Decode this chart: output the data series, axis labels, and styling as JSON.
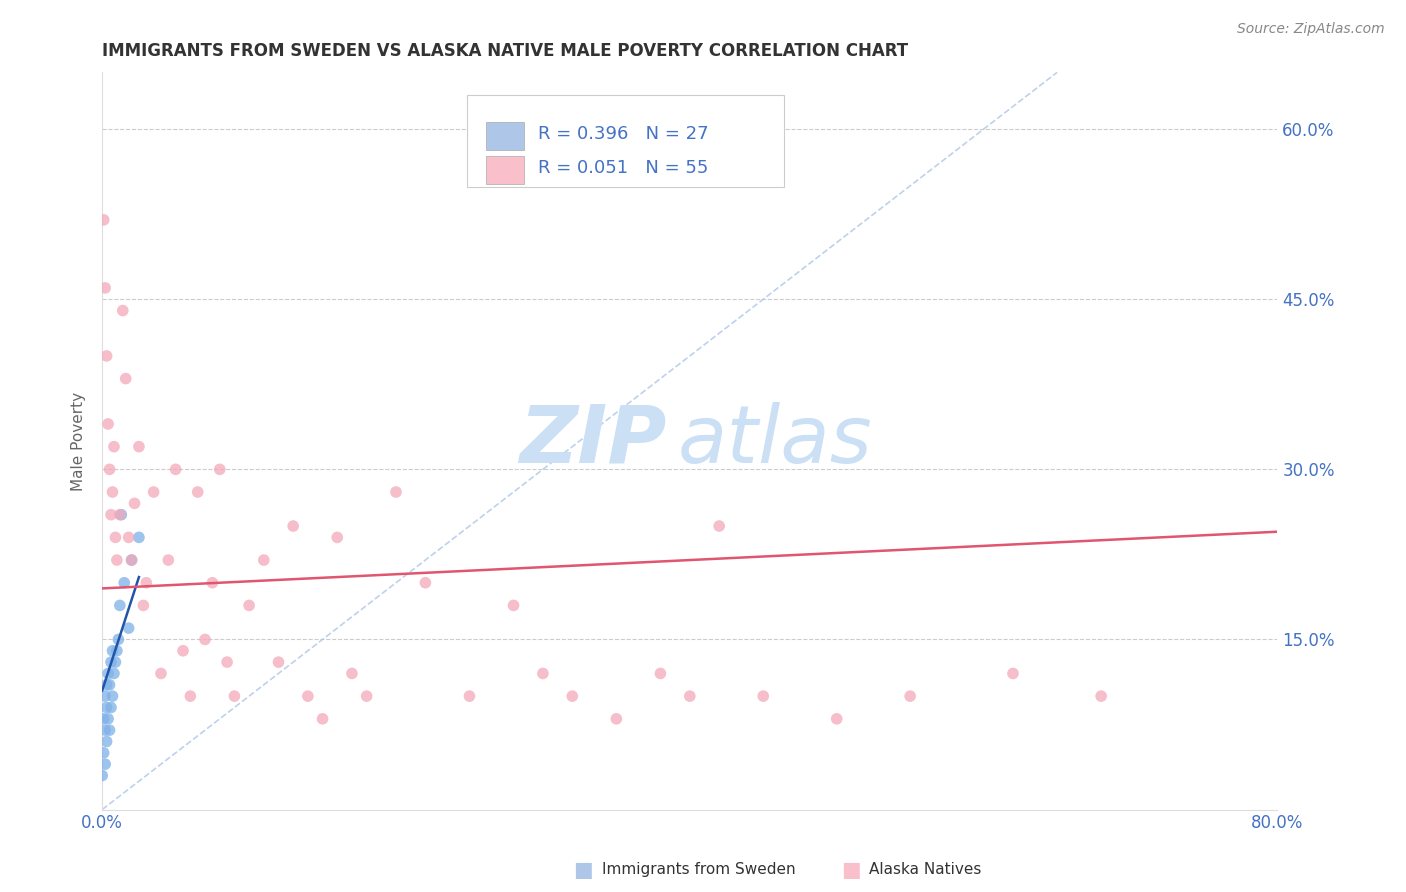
{
  "title": "IMMIGRANTS FROM SWEDEN VS ALASKA NATIVE MALE POVERTY CORRELATION CHART",
  "source_text": "Source: ZipAtlas.com",
  "ylabel": "Male Poverty",
  "xlim": [
    0.0,
    0.8
  ],
  "ylim": [
    0.0,
    0.65
  ],
  "ytick_positions": [
    0.15,
    0.3,
    0.45,
    0.6
  ],
  "ytick_labels": [
    "15.0%",
    "30.0%",
    "45.0%",
    "60.0%"
  ],
  "grid_color": "#cccccc",
  "background_color": "#ffffff",
  "title_color": "#333333",
  "axis_label_color": "#4472c4",
  "watermark_zip": "ZIP",
  "watermark_atlas": "atlas",
  "watermark_color": "#cce0f5",
  "series": [
    {
      "name": "Immigrants from Sweden",
      "R": 0.396,
      "N": 27,
      "marker_color": "#7db0e8",
      "trend_color": "#2255aa",
      "x": [
        0.0,
        0.001,
        0.001,
        0.002,
        0.002,
        0.002,
        0.003,
        0.003,
        0.003,
        0.004,
        0.004,
        0.005,
        0.005,
        0.006,
        0.006,
        0.007,
        0.007,
        0.008,
        0.009,
        0.01,
        0.011,
        0.012,
        0.013,
        0.015,
        0.018,
        0.02,
        0.025
      ],
      "y": [
        0.03,
        0.05,
        0.08,
        0.04,
        0.07,
        0.1,
        0.06,
        0.09,
        0.11,
        0.08,
        0.12,
        0.07,
        0.11,
        0.09,
        0.13,
        0.1,
        0.14,
        0.12,
        0.13,
        0.14,
        0.15,
        0.18,
        0.26,
        0.2,
        0.16,
        0.22,
        0.24
      ],
      "trend_x": [
        0.0,
        0.025
      ],
      "trend_y": [
        0.105,
        0.205
      ]
    },
    {
      "name": "Alaska Natives",
      "R": 0.051,
      "N": 55,
      "marker_color": "#f4a7b9",
      "trend_color": "#e05570",
      "x": [
        0.001,
        0.002,
        0.003,
        0.004,
        0.005,
        0.006,
        0.007,
        0.008,
        0.009,
        0.01,
        0.012,
        0.014,
        0.016,
        0.018,
        0.02,
        0.022,
        0.025,
        0.028,
        0.03,
        0.035,
        0.04,
        0.045,
        0.05,
        0.055,
        0.06,
        0.065,
        0.07,
        0.075,
        0.08,
        0.085,
        0.09,
        0.1,
        0.11,
        0.12,
        0.13,
        0.14,
        0.15,
        0.16,
        0.17,
        0.18,
        0.2,
        0.22,
        0.25,
        0.28,
        0.3,
        0.32,
        0.35,
        0.38,
        0.4,
        0.42,
        0.45,
        0.5,
        0.55,
        0.62,
        0.68
      ],
      "y": [
        0.52,
        0.46,
        0.4,
        0.34,
        0.3,
        0.26,
        0.28,
        0.32,
        0.24,
        0.22,
        0.26,
        0.44,
        0.38,
        0.24,
        0.22,
        0.27,
        0.32,
        0.18,
        0.2,
        0.28,
        0.12,
        0.22,
        0.3,
        0.14,
        0.1,
        0.28,
        0.15,
        0.2,
        0.3,
        0.13,
        0.1,
        0.18,
        0.22,
        0.13,
        0.25,
        0.1,
        0.08,
        0.24,
        0.12,
        0.1,
        0.28,
        0.2,
        0.1,
        0.18,
        0.12,
        0.1,
        0.08,
        0.12,
        0.1,
        0.25,
        0.1,
        0.08,
        0.1,
        0.12,
        0.1
      ],
      "trend_x": [
        0.0,
        0.8
      ],
      "trend_y": [
        0.195,
        0.245
      ]
    }
  ],
  "legend_box_color_1": "#aec6e8",
  "legend_box_color_2": "#f9c0cc",
  "legend_R_N_color": "#4472c4",
  "diag_line_color": "#aec6e8",
  "bottom_legend_label_1": "Immigrants from Sweden",
  "bottom_legend_label_2": "Alaska Natives"
}
